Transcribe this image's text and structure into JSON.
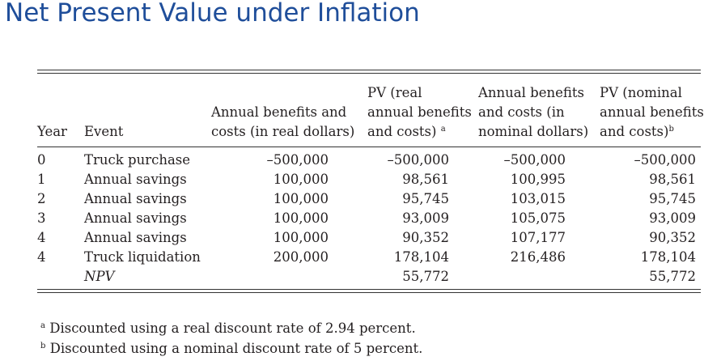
{
  "title": "Net Present Value under Inflation",
  "table": {
    "headers": {
      "year": "Year",
      "event": "Event",
      "real_line1": "Annual benefits and",
      "real_line2": "costs (in real dollars)",
      "pv_real_line1": "PV (real",
      "pv_real_line2": "annual benefits",
      "pv_real_line3": "and costs)",
      "pv_real_mark": "a",
      "nominal_line1": "Annual benefits",
      "nominal_line2": "and costs (in",
      "nominal_line3": "nominal dollars)",
      "pv_nominal_line1": "PV (nominal",
      "pv_nominal_line2": "annual benefits",
      "pv_nominal_line3": "and costs)",
      "pv_nominal_mark": "b"
    },
    "rows": [
      {
        "year": "0",
        "event": "Truck purchase",
        "real": "–500,000",
        "pv_real": "–500,000",
        "nominal": "–500,000",
        "pv_nominal": "–500,000"
      },
      {
        "year": "1",
        "event": "Annual savings",
        "real": "100,000",
        "pv_real": "98,561",
        "nominal": "100,995",
        "pv_nominal": "98,561"
      },
      {
        "year": "2",
        "event": "Annual savings",
        "real": "100,000",
        "pv_real": "95,745",
        "nominal": "103,015",
        "pv_nominal": "95,745"
      },
      {
        "year": "3",
        "event": "Annual savings",
        "real": "100,000",
        "pv_real": "93,009",
        "nominal": "105,075",
        "pv_nominal": "93,009"
      },
      {
        "year": "4",
        "event": "Annual savings",
        "real": "100,000",
        "pv_real": "90,352",
        "nominal": "107,177",
        "pv_nominal": "90,352"
      },
      {
        "year": "4",
        "event": "Truck liquidation",
        "real": "200,000",
        "pv_real": "178,104",
        "nominal": "216,486",
        "pv_nominal": "178,104"
      }
    ],
    "npv": {
      "label": "NPV",
      "pv_real": "55,772",
      "pv_nominal": "55,772"
    }
  },
  "footnotes": [
    {
      "mark": "a",
      "text": "Discounted using a real discount rate of 2.94 percent."
    },
    {
      "mark": "b",
      "text": "Discounted using a nominal discount rate of 5 percent."
    }
  ]
}
